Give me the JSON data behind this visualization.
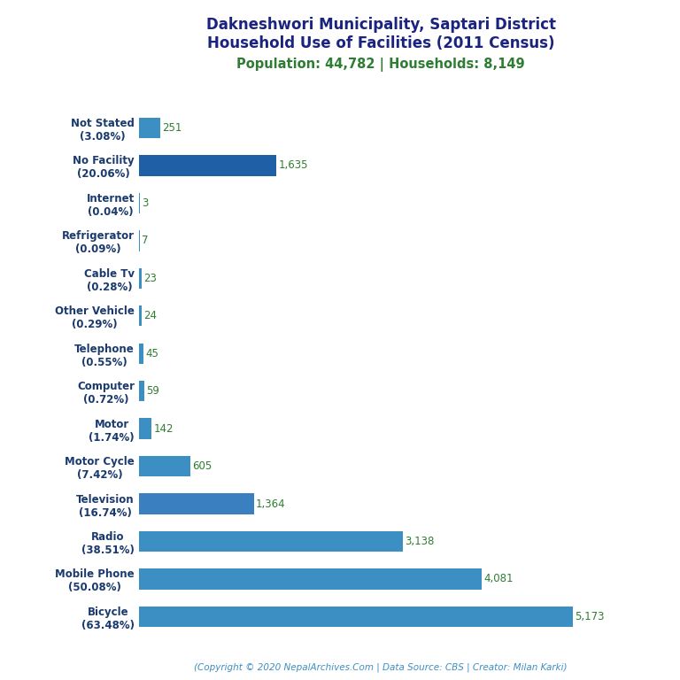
{
  "title_line1": "Dakneshwori Municipality, Saptari District",
  "title_line2": "Household Use of Facilities (2011 Census)",
  "subtitle": "Population: 44,782 | Households: 8,149",
  "footer": "(Copyright © 2020 NepalArchives.Com | Data Source: CBS | Creator: Milan Karki)",
  "categories": [
    "Bicycle\n(63.48%)",
    "Mobile Phone\n(50.08%)",
    "Radio\n(38.51%)",
    "Television\n(16.74%)",
    "Motor Cycle\n(7.42%)",
    "Motor\n(1.74%)",
    "Computer\n(0.72%)",
    "Telephone\n(0.55%)",
    "Other Vehicle\n(0.29%)",
    "Cable Tv\n(0.28%)",
    "Refrigerator\n(0.09%)",
    "Internet\n(0.04%)",
    "No Facility\n(20.06%)",
    "Not Stated\n(3.08%)"
  ],
  "values": [
    5173,
    4081,
    3138,
    1364,
    605,
    142,
    59,
    45,
    24,
    23,
    7,
    3,
    1635,
    251
  ],
  "bar_colors": [
    "#3c8fc3",
    "#3c8fc3",
    "#3c8fc3",
    "#3a7fbf",
    "#3c8fc3",
    "#3c8fc3",
    "#3c8fc3",
    "#3c8fc3",
    "#3c8fc3",
    "#3c8fc3",
    "#3c8fc3",
    "#3c8fc3",
    "#1f5fa6",
    "#3c8fc3"
  ],
  "title_color": "#1a237e",
  "subtitle_color": "#2e7d32",
  "value_color": "#2e7d32",
  "footer_color": "#3c8fc3",
  "ylabel_color": "#1a3a6e",
  "background_color": "#ffffff",
  "xlim": [
    0,
    5800
  ],
  "bar_height": 0.55,
  "figsize": [
    7.68,
    7.68
  ],
  "dpi": 100
}
